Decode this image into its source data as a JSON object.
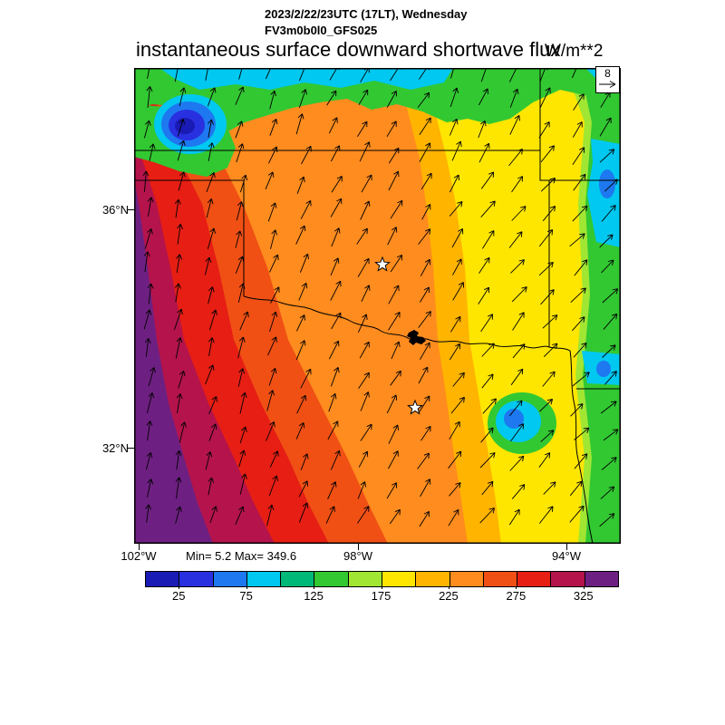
{
  "header": {
    "datetime_line": "2023/2/22/23UTC (17LT), Wednesday",
    "model_line": "FV3m0b0l0_GFS025",
    "title": "instantaneous surface downward shortwave flux",
    "units": "W/m**2"
  },
  "map": {
    "lat_ticks": [
      {
        "label": "36°N"
      },
      {
        "label": "32°N"
      }
    ],
    "lon_ticks": [
      {
        "label": "102°W"
      },
      {
        "label": "98°W"
      },
      {
        "label": "94°W"
      }
    ],
    "stats_label": "Min= 5.2 Max= 349.6",
    "reference_vector_value": "8",
    "star_marker_count": 2
  },
  "chart_data": {
    "type": "heatmap",
    "title": "instantaneous surface downward shortwave flux",
    "units": "W/m**2",
    "valid_time": "2023/2/22/23UTC (17LT), Wednesday",
    "model_run": "FV3m0b0l0_GFS025",
    "min": 5.2,
    "max": 349.6,
    "colorbar": {
      "tick_values": [
        25,
        75,
        125,
        175,
        225,
        275,
        325
      ],
      "level_min": 0,
      "level_max": 350,
      "level_step": 25,
      "colors": [
        "#1a1ab4",
        "#2830e0",
        "#1e78f0",
        "#00c8f0",
        "#00b878",
        "#32c832",
        "#a0e632",
        "#ffe600",
        "#ffb400",
        "#ff8c1e",
        "#f05014",
        "#e61e14",
        "#b4144b",
        "#6e2082"
      ]
    },
    "x_tick_labels": [
      "102°W",
      "98°W",
      "94°W"
    ],
    "y_tick_labels": [
      "36°N",
      "32°N"
    ],
    "wind_vectors": {
      "reference_value": 8,
      "direction": "southwesterly flow; arrows point north-northeast in the west veering to northeast in the east"
    },
    "field_summary": [
      {
        "region": "far west (left edge, west Texas)",
        "flux_wm2": "325-350",
        "color": "purple"
      },
      {
        "region": "western band",
        "flux_wm2": "275-325",
        "color": "red"
      },
      {
        "region": "central Texas / Oklahoma",
        "flux_wm2": "200-275",
        "color": "orange"
      },
      {
        "region": "eastern half",
        "flux_wm2": "125-200",
        "color": "yellow"
      },
      {
        "region": "far east edge",
        "flux_wm2": "75-125",
        "color": "green"
      },
      {
        "region": "northern edge cloud band and scattered cloud patches",
        "flux_wm2": "5-100",
        "color": "blue/cyan"
      }
    ]
  }
}
